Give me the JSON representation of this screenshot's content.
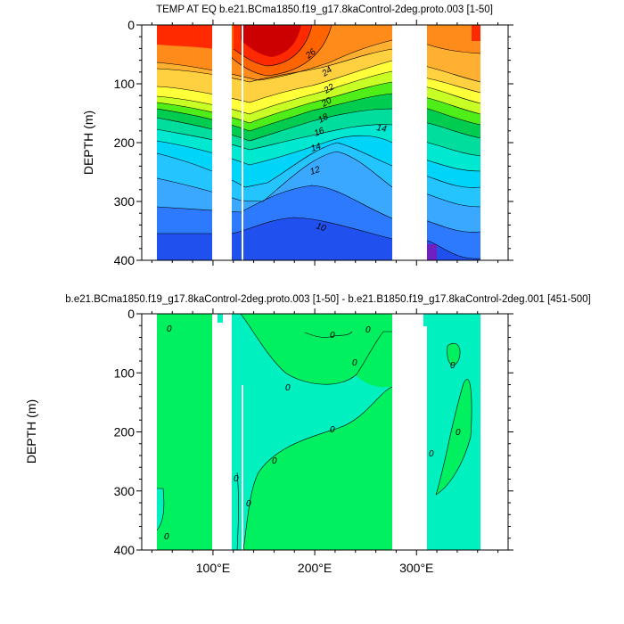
{
  "chart_data": [
    {
      "type": "heatmap",
      "subtype": "filled-contour",
      "title": "TEMP AT EQ b.e21.BCma1850.f19_g17.8kaControl-2deg.proto.003 [1-50]",
      "ylabel": "DEPTH (m)",
      "xlabel": "",
      "xlim": [
        30,
        390
      ],
      "ylim": [
        400,
        0
      ],
      "y_inverted": true,
      "x_ticks": [
        100,
        200,
        300
      ],
      "x_tick_labels": [
        "",
        "",
        ""
      ],
      "y_ticks": [
        0,
        100,
        200,
        300,
        400
      ],
      "y_tick_labels": [
        "0",
        "100",
        "200",
        "300",
        "400"
      ],
      "data_extent_x": [
        44,
        368
      ],
      "land_gaps_x": [
        [
          98,
          108
        ],
        [
          118,
          120
        ],
        [
          126,
          129
        ],
        [
          277,
          314
        ]
      ],
      "colors_warm_to_cold": [
        "#cc0000",
        "#ff2a00",
        "#ff6400",
        "#ff8c1a",
        "#ffb030",
        "#ffd040",
        "#ffff3a",
        "#c8ff24",
        "#50ee18",
        "#00cc50",
        "#00dd9c",
        "#00e8d0",
        "#00d4f8",
        "#24c4ff",
        "#3aa8ff",
        "#2e7aff",
        "#2050ee",
        "#1038d8",
        "#7020c0"
      ],
      "contour_labels": [
        "26",
        "24",
        "22",
        "20",
        "18",
        "16",
        "14",
        "14",
        "12",
        "10"
      ]
    },
    {
      "type": "heatmap",
      "subtype": "filled-contour",
      "title": "b.e21.BCma1850.f19_g17.8kaControl-2deg.proto.003 [1-50] - b.e21.B1850.f19_g17.8kaControl-2deg.001 [451-500]",
      "ylabel": "DEPTH (m)",
      "xlabel": "",
      "xlim": [
        30,
        390
      ],
      "ylim": [
        400,
        0
      ],
      "y_inverted": true,
      "x_ticks": [
        100,
        200,
        300
      ],
      "x_tick_labels": [
        "100°E",
        "200°E",
        "300°E"
      ],
      "y_ticks": [
        0,
        100,
        200,
        300,
        400
      ],
      "y_tick_labels": [
        "0",
        "100",
        "200",
        "300",
        "400"
      ],
      "data_extent_x": [
        44,
        368
      ],
      "land_gaps_x": [
        [
          98,
          108
        ],
        [
          118,
          120
        ],
        [
          126,
          129
        ],
        [
          277,
          314
        ]
      ],
      "colors": {
        "positive": "#00f060",
        "near_zero": "#00f0c0"
      },
      "contour_labels": [
        "0",
        "0",
        "0",
        "0",
        "0",
        "0",
        "0",
        "0",
        "0",
        "0",
        "0",
        "0",
        "0"
      ]
    }
  ]
}
